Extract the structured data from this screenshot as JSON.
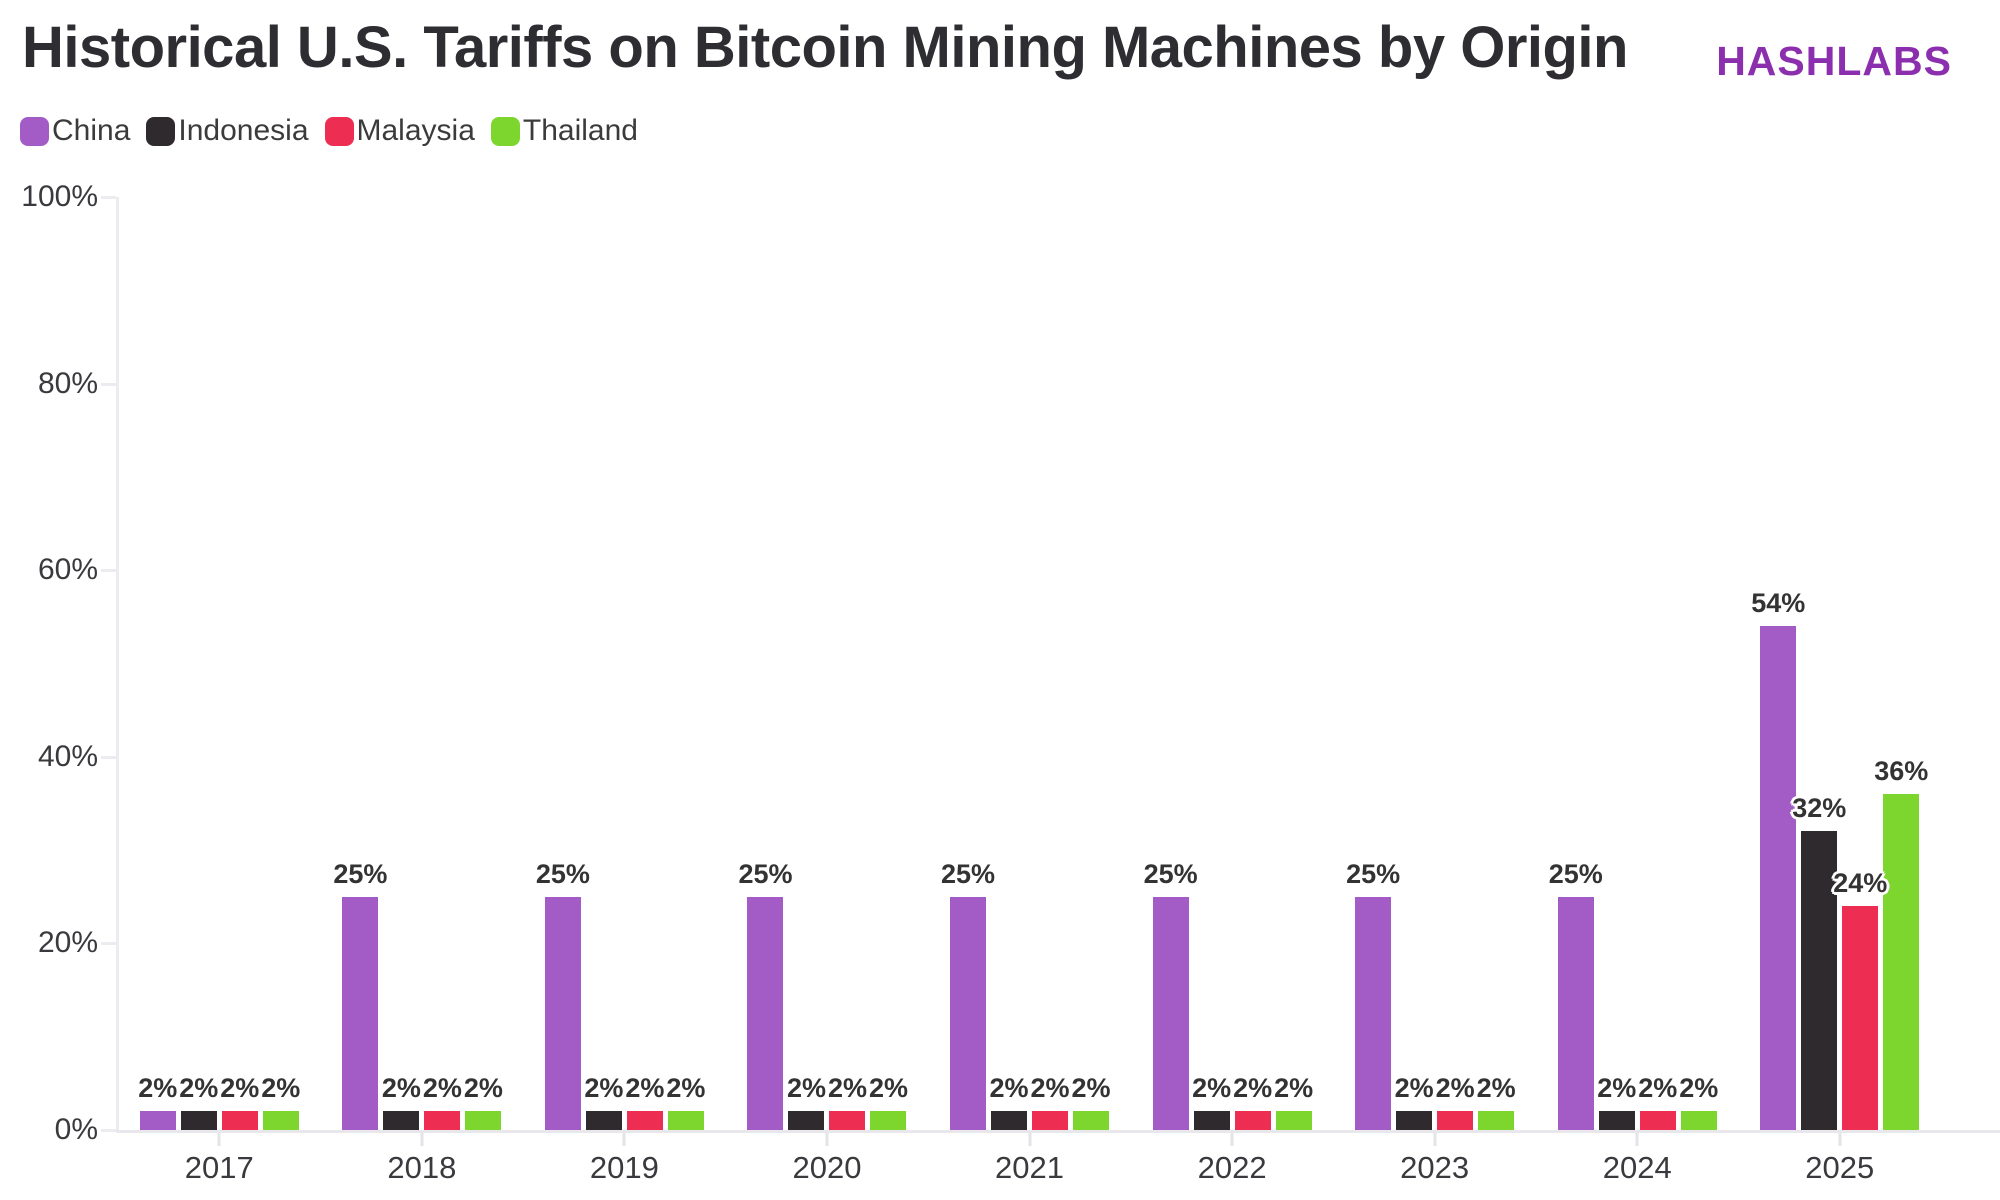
{
  "header": {
    "title": "Historical U.S. Tariffs on Bitcoin Mining Machines by Origin",
    "brand": "HASHLABS"
  },
  "colors": {
    "china": "#a35cc5",
    "indonesia": "#2e2a2e",
    "malaysia": "#ed2e52",
    "thailand": "#7dd62e",
    "brand": "#8c2fae",
    "axis_line": "#ececf0",
    "axis_text": "#3a3a3e",
    "value_label": "#333333"
  },
  "chart_data": {
    "type": "bar",
    "title": "Historical U.S. Tariffs on Bitcoin Mining Machines by Origin",
    "xlabel": "",
    "ylabel": "",
    "categories": [
      "2017",
      "2018",
      "2019",
      "2020",
      "2021",
      "2022",
      "2023",
      "2024",
      "2025"
    ],
    "series": [
      {
        "name": "China",
        "color": "#a35cc5",
        "values": [
          2,
          25,
          25,
          25,
          25,
          25,
          25,
          25,
          54
        ]
      },
      {
        "name": "Indonesia",
        "color": "#2e2a2e",
        "values": [
          2,
          2,
          2,
          2,
          2,
          2,
          2,
          2,
          32
        ]
      },
      {
        "name": "Malaysia",
        "color": "#ed2e52",
        "values": [
          2,
          2,
          2,
          2,
          2,
          2,
          2,
          2,
          24
        ]
      },
      {
        "name": "Thailand",
        "color": "#7dd62e",
        "values": [
          2,
          2,
          2,
          2,
          2,
          2,
          2,
          2,
          36
        ]
      }
    ],
    "ylim": [
      0,
      100
    ],
    "yticks": [
      {
        "label": "0%",
        "value": 0
      },
      {
        "label": "20%",
        "value": 20
      },
      {
        "label": "40%",
        "value": 40
      },
      {
        "label": "60%",
        "value": 60
      },
      {
        "label": "80%",
        "value": 80
      },
      {
        "label": "100%",
        "value": 100
      }
    ],
    "grid": false,
    "legend_position": "top-left",
    "value_label_suffix": "%",
    "value_labels": true
  }
}
